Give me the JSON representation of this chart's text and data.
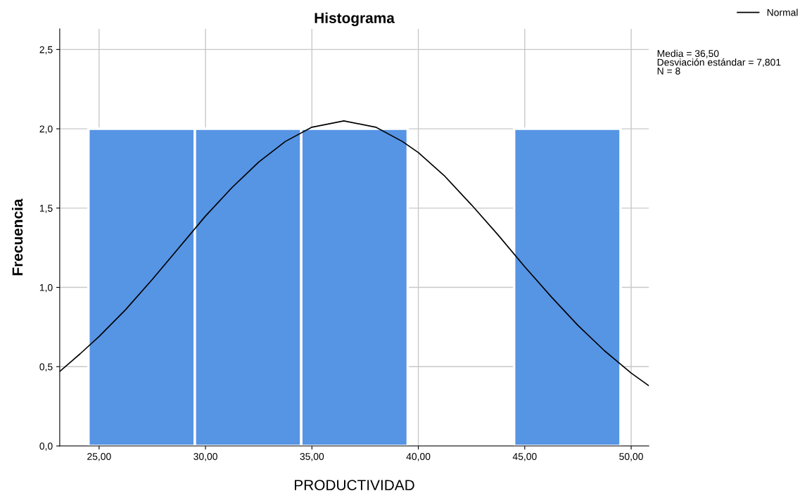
{
  "chart_data": {
    "type": "histogram",
    "title": "Histograma",
    "xlabel": "PRODUCTIVIDAD",
    "ylabel": "Frecuencia",
    "bins": [
      24.5,
      29.5,
      34.5,
      39.5,
      44.5,
      49.5
    ],
    "values": [
      2,
      2,
      2,
      0,
      2
    ],
    "color": "#5694e4",
    "series": [
      {
        "type": "line",
        "name": "Normal",
        "color": "#000000",
        "x": [
          23.15,
          24.1,
          25,
          26.25,
          27.5,
          28.75,
          30,
          31.25,
          32.5,
          33.75,
          35,
          36.5,
          38,
          39.25,
          40,
          41.25,
          42.5,
          43.75,
          45,
          46.25,
          47.5,
          48.75,
          50,
          50.83
        ],
        "values": [
          0.47,
          0.58,
          0.69,
          0.86,
          1.05,
          1.25,
          1.45,
          1.63,
          1.79,
          1.92,
          2.01,
          2.05,
          2.01,
          1.92,
          1.85,
          1.7,
          1.52,
          1.33,
          1.13,
          0.94,
          0.76,
          0.6,
          0.46,
          0.38
        ]
      }
    ],
    "annotations": [
      "Media = 36,50\nDesviación estándar = 7,801\nN = 8"
    ],
    "xlim": [
      23.15,
      50.83
    ],
    "xticks": [
      {
        "value": 25,
        "label": "25,00"
      },
      {
        "value": 30,
        "label": "30,00"
      },
      {
        "value": 35,
        "label": "35,00"
      },
      {
        "value": 40,
        "label": "40,00"
      },
      {
        "value": 45,
        "label": "45,00"
      },
      {
        "value": 50,
        "label": "50,00"
      }
    ],
    "ylim": [
      0,
      2.63
    ],
    "yticks": [
      {
        "value": 0,
        "label": "0,0"
      },
      {
        "value": 0.5,
        "label": "0,5"
      },
      {
        "value": 1,
        "label": "1,0"
      },
      {
        "value": 1.5,
        "label": "1,5"
      },
      {
        "value": 2,
        "label": "2,0"
      },
      {
        "value": 2.5,
        "label": "2,5"
      }
    ],
    "grid": true,
    "legend": "top right"
  }
}
